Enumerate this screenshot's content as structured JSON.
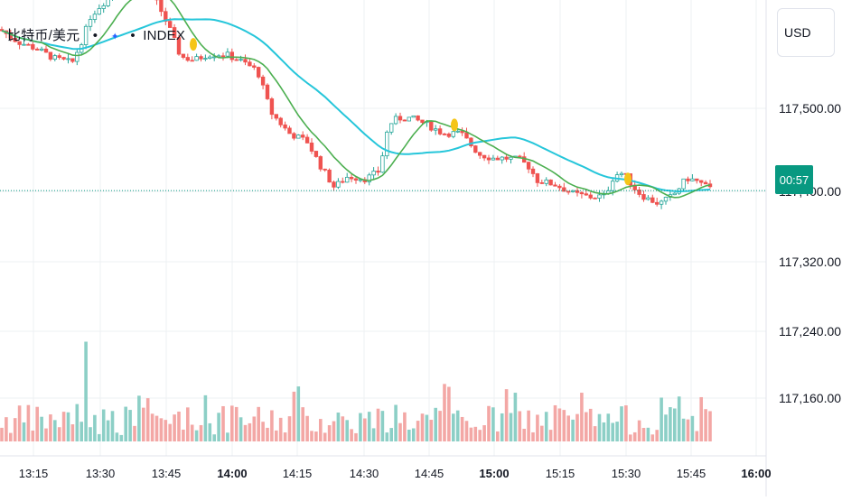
{
  "symbol": {
    "name": "比特币/美元",
    "dot1": "•",
    "flag_glyph": "✦",
    "dot2": "•",
    "source": "INDEX"
  },
  "currency_button": {
    "label": "USD"
  },
  "countdown": {
    "label": "00:57"
  },
  "price_axis": {
    "labels": [
      "117,500.00",
      "117,400.00",
      "117,320.00",
      "117,240.00",
      "117,160.00"
    ]
  },
  "time_axis": {
    "labels": [
      "13:15",
      "13:30",
      "13:45",
      "14:00",
      "14:15",
      "14:30",
      "14:45",
      "15:00",
      "15:15",
      "15:30",
      "15:45",
      "16:00"
    ],
    "bold_labels": [
      "14:00",
      "15:00",
      "16:00"
    ]
  },
  "colors": {
    "up": "#26a69a",
    "down": "#ef5350",
    "up_volume": "#8ccfc6",
    "down_volume": "#f3a7a5",
    "ma_fast": "#4caf50",
    "ma_slow": "#26c6da",
    "last_price_line": "#089981",
    "grid": "#eef0f3",
    "event_marker": "#f5c518"
  },
  "icons": {
    "event_marker": "dividend-dot-icon"
  },
  "chart_data": {
    "type": "candlestick",
    "x": [
      "13:15",
      "13:30",
      "13:45",
      "14:00",
      "14:15",
      "14:30",
      "14:45",
      "15:00",
      "15:15",
      "15:30",
      "15:45"
    ],
    "series": [
      {
        "name": "",
        "type": "ohlc",
        "close": [
          117580,
          117610,
          117555,
          117500,
          117430,
          117395,
          117450,
          117445,
          117420,
          117398,
          117400
        ]
      },
      {
        "name": "",
        "type": "line",
        "values": [
          117565,
          117590,
          117560,
          117510,
          117450,
          117425,
          117445,
          117438,
          117418,
          117405,
          117402
        ]
      },
      {
        "name": "",
        "type": "line",
        "values": [
          117590,
          117600,
          117575,
          117545,
          117510,
          117480,
          117465,
          117450,
          117435,
          117420,
          117410
        ]
      }
    ],
    "last_price": 117401,
    "ylim": [
      117140,
      117640
    ],
    "ylabel": "",
    "xlabel": "",
    "grid": true
  }
}
